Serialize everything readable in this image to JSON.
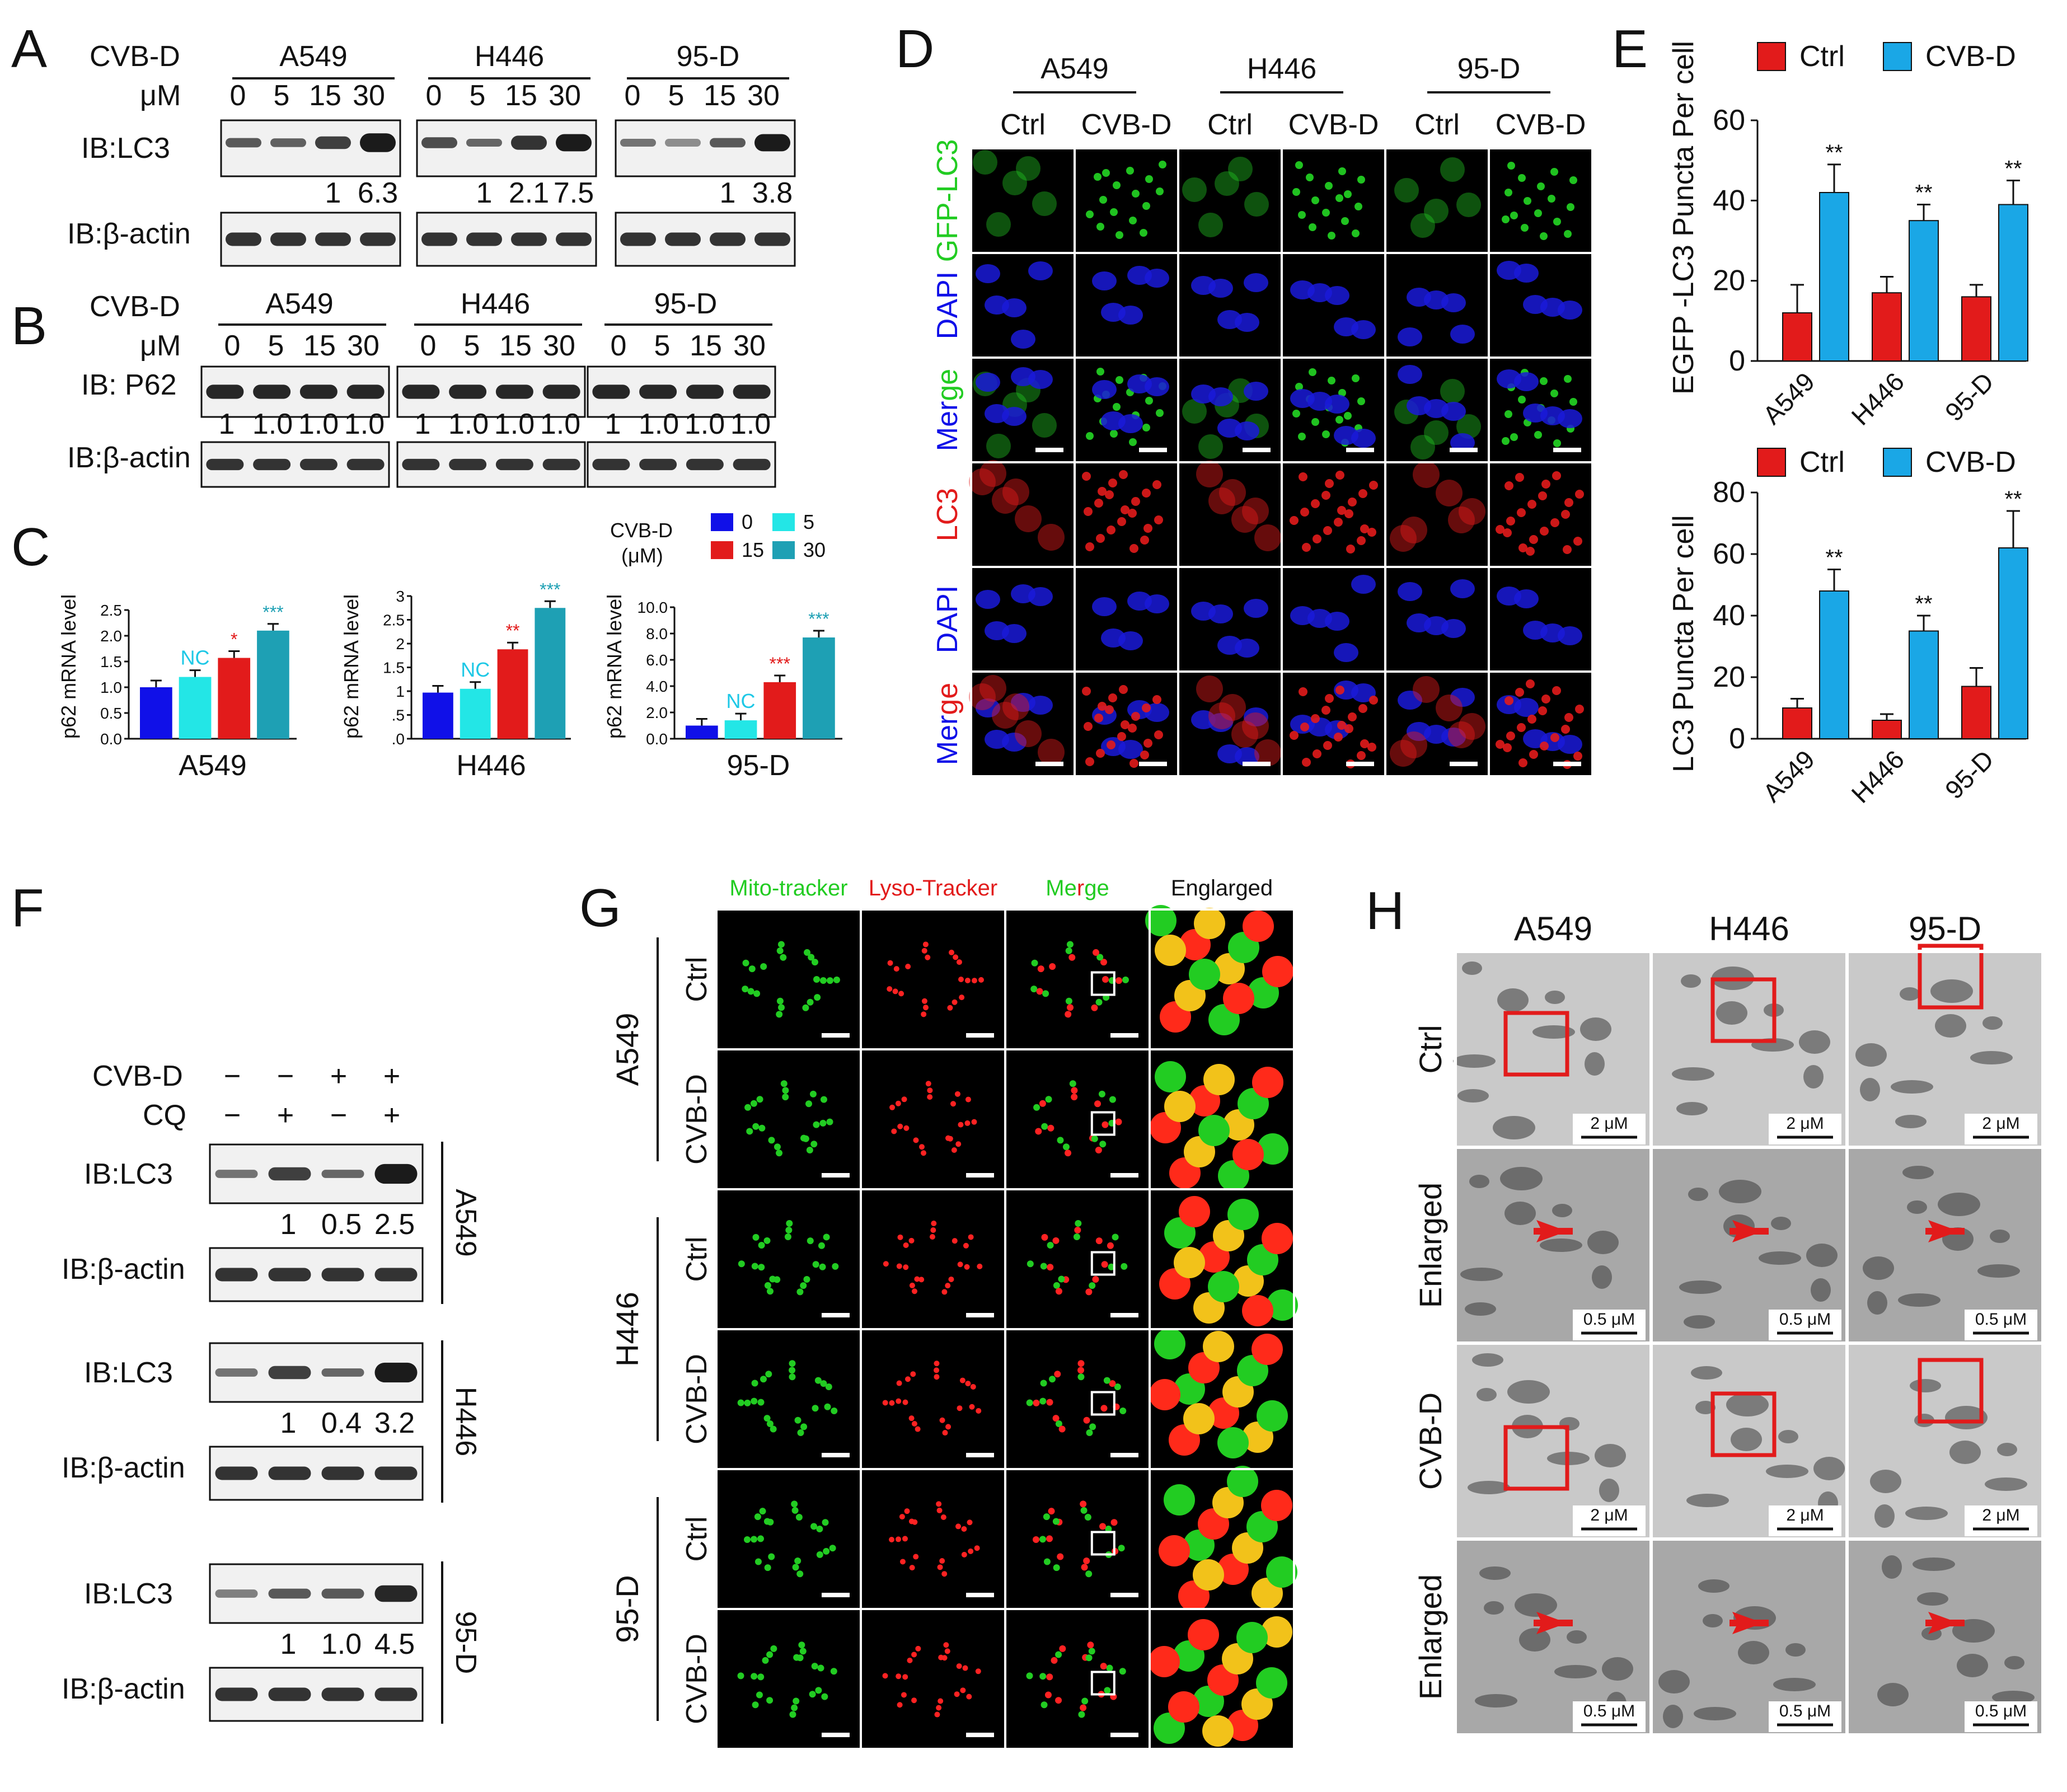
{
  "colors": {
    "red": "#e21b1b",
    "blue": "#1aa7e6",
    "darkblue": "#1010e8",
    "cyan": "#23e6e6",
    "teal": "#1ea0b4",
    "green": "#22cc22",
    "nc": "#1ec8e6"
  },
  "panelA": {
    "letter": "A",
    "treatment": "CVB-D",
    "unit": "μM",
    "doses": [
      "0",
      "5",
      "15",
      "30"
    ],
    "groups": [
      {
        "name": "A549",
        "ratios": [
          "1",
          "6.3"
        ]
      },
      {
        "name": "H446",
        "ratios": [
          "1",
          "2.1",
          "7.5"
        ]
      },
      {
        "name": "95-D",
        "ratios": [
          "1",
          "3.8"
        ]
      }
    ],
    "rows": [
      "IB:LC3",
      "IB:β-actin"
    ]
  },
  "panelB": {
    "letter": "B",
    "treatment": "CVB-D",
    "unit": "μM",
    "doses": [
      "0",
      "5",
      "15",
      "30"
    ],
    "groups": [
      "A549",
      "H446",
      "95-D"
    ],
    "ratios": [
      "1",
      "1.0",
      "1.0",
      "1.0"
    ],
    "rows": [
      "IB: P62",
      "IB:β-actin"
    ]
  },
  "panelC": {
    "letter": "C",
    "legend_title": "CVB-D",
    "legend_unit": "(μM)",
    "legend": [
      "0",
      "5",
      "15",
      "30"
    ],
    "ylabel": "p62 mRNA level",
    "nc": "NC",
    "charts": [
      {
        "cell": "A549",
        "ticks": [
          "2.5",
          "2.0",
          "1.5",
          "1.0",
          "0.5",
          "0.0"
        ],
        "values": [
          1.0,
          1.2,
          1.57,
          2.1
        ],
        "ymax": 2.5,
        "sig": [
          "",
          "NC",
          "*",
          "***"
        ]
      },
      {
        "cell": "H446",
        "ticks": [
          "3",
          "2.5",
          "2",
          "1.5",
          "1",
          ".5",
          ".0"
        ],
        "values": [
          0.97,
          1.05,
          1.88,
          2.75
        ],
        "ymax": 3.0,
        "sig": [
          "",
          "NC",
          "**",
          "***"
        ]
      },
      {
        "cell": "95-D",
        "ticks": [
          "10.0",
          "8.0",
          "6.0",
          "4.0",
          "2.0",
          "0.0"
        ],
        "values": [
          1.0,
          1.4,
          4.3,
          7.7
        ],
        "ymax": 10.0,
        "sig": [
          "",
          "NC",
          "***",
          "***"
        ]
      }
    ]
  },
  "panelD": {
    "letter": "D",
    "groups": [
      "A549",
      "H446",
      "95-D"
    ],
    "cols": [
      "Ctrl",
      "CVB-D",
      "Ctrl",
      "CVB-D",
      "Ctrl",
      "CVB-D"
    ],
    "rows": [
      "GFP-LC3",
      "DAPI",
      "Merge",
      "LC3",
      "DAPI",
      "Merge"
    ]
  },
  "panelE": {
    "letter": "E",
    "legend": [
      "Ctrl",
      "CVB-D"
    ],
    "categories": [
      "A549",
      "H446",
      "95-D"
    ],
    "sig": "**"
  },
  "chart_data": [
    {
      "type": "bar",
      "title": "",
      "ylabel": "EGFP -LC3 Puncta Per cell",
      "categories": [
        "A549",
        "H446",
        "95-D"
      ],
      "ylim": [
        0,
        60
      ],
      "yticks": [
        "60",
        "40",
        "20",
        "0"
      ],
      "series": [
        {
          "name": "Ctrl",
          "values": [
            12,
            17,
            16
          ],
          "errors": [
            7,
            4,
            3
          ]
        },
        {
          "name": "CVB-D",
          "values": [
            42,
            35,
            39
          ],
          "errors": [
            7,
            4,
            6
          ]
        }
      ]
    },
    {
      "type": "bar",
      "title": "",
      "ylabel": "LC3  Puncta Per cell",
      "categories": [
        "A549",
        "H446",
        "95-D"
      ],
      "ylim": [
        0,
        80
      ],
      "yticks": [
        "80",
        "60",
        "40",
        "20",
        "0"
      ],
      "series": [
        {
          "name": "Ctrl",
          "values": [
            10,
            6,
            17
          ],
          "errors": [
            3,
            2,
            6
          ]
        },
        {
          "name": "CVB-D",
          "values": [
            48,
            35,
            62
          ],
          "errors": [
            7,
            5,
            12
          ]
        }
      ]
    }
  ],
  "panelF": {
    "letter": "F",
    "treat1": "CVB-D",
    "treat2": "CQ",
    "signs1": [
      "−",
      "−",
      "+",
      "+"
    ],
    "signs2": [
      "−",
      "+",
      "−",
      "+"
    ],
    "blocks": [
      {
        "cell": "A549",
        "ratios": [
          "1",
          "0.5",
          "2.5"
        ]
      },
      {
        "cell": "H446",
        "ratios": [
          "1",
          "0.4",
          "3.2"
        ]
      },
      {
        "cell": "95-D",
        "ratios": [
          "1",
          "1.0",
          "4.5"
        ]
      }
    ],
    "rows": [
      "IB:LC3",
      "IB:β-actin"
    ]
  },
  "panelG": {
    "letter": "G",
    "cols": [
      "Mito-tracker",
      "Lyso-Tracker",
      "Merge",
      "Englarged"
    ],
    "groups": [
      "A549",
      "H446",
      "95-D"
    ],
    "conds": [
      "Ctrl",
      "CVB-D"
    ]
  },
  "panelH": {
    "letter": "H",
    "cols": [
      "A549",
      "H446",
      "95-D"
    ],
    "rows": [
      "Ctrl",
      "Enlarged",
      "CVB-D",
      "Enlarged"
    ],
    "scale_large": "2 μM",
    "scale_small": "0.5 μM"
  }
}
